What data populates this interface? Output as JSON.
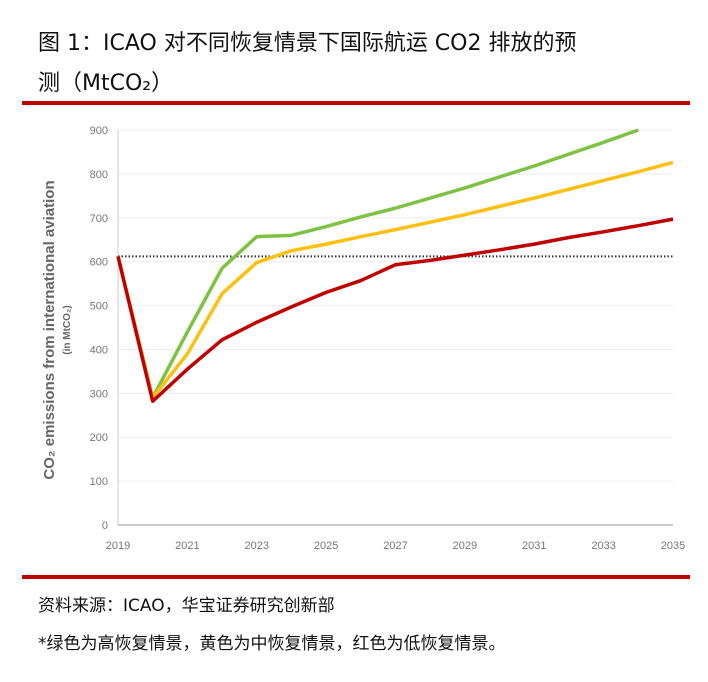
{
  "header": {
    "title_line1": "图 1：ICAO 对不同恢复情景下国际航运 CO2 排放的预",
    "title_line2": "测（MtCO₂）"
  },
  "footer": {
    "source": "资料来源：ICAO，华宝证券研究创新部",
    "note": "*绿色为高恢复情景，黄色为中恢复情景，红色为低恢复情景。"
  },
  "accent_color": "#c00000",
  "chart_data": {
    "type": "line",
    "ylabel": "CO₂ emissions from international aviation",
    "ylabel_sub": "(in MtCO₂)",
    "xlim": [
      2019,
      2035
    ],
    "ylim": [
      0,
      900
    ],
    "xticks": [
      "2019",
      "2021",
      "2023",
      "2025",
      "2027",
      "2029",
      "2031",
      "2033",
      "2035"
    ],
    "yticks": [
      "0",
      "100",
      "200",
      "300",
      "400",
      "500",
      "600",
      "700",
      "800",
      "900"
    ],
    "grid": true,
    "reference_line": {
      "y": 612,
      "style": "dotted",
      "color": "#333333"
    },
    "x": [
      2019,
      2020,
      2021,
      2022,
      2023,
      2024,
      2025,
      2026,
      2027,
      2028,
      2029,
      2030,
      2031,
      2032,
      2033,
      2034,
      2035
    ],
    "series": [
      {
        "color": "#7dc242",
        "values": [
          612,
          290,
          440,
          585,
          657,
          660,
          680,
          702,
          722,
          745,
          768,
          793,
          818,
          845,
          872,
          902,
          null
        ]
      },
      {
        "color": "#fdc010",
        "values": [
          612,
          290,
          390,
          527,
          598,
          625,
          640,
          657,
          673,
          690,
          707,
          726,
          745,
          765,
          785,
          805,
          826
        ]
      },
      {
        "color": "#c00000",
        "values": [
          612,
          282,
          355,
          422,
          462,
          497,
          530,
          557,
          593,
          603,
          615,
          627,
          640,
          655,
          668,
          682,
          697
        ]
      }
    ]
  }
}
